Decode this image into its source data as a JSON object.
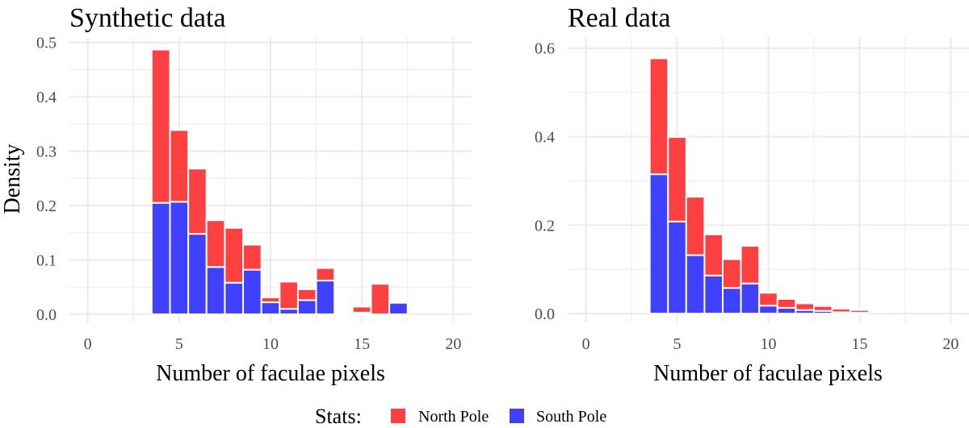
{
  "chart_data": [
    {
      "type": "bar",
      "stacked": true,
      "title": "Synthetic data",
      "xlabel": "Number of faculae pixels",
      "ylabel": "Density",
      "xlim": [
        -1,
        21
      ],
      "ylim": [
        -0.015,
        0.51
      ],
      "xticks": [
        0,
        5,
        10,
        15,
        20
      ],
      "yticks": [
        0.0,
        0.1,
        0.2,
        0.3,
        0.4,
        0.5
      ],
      "ytick_labels": [
        "0.0",
        "0.1",
        "0.2",
        "0.3",
        "0.4",
        "0.5"
      ],
      "x": [
        4,
        5,
        6,
        7,
        8,
        9,
        10,
        11,
        12,
        13,
        14,
        15,
        16,
        17
      ],
      "series": [
        {
          "name": "South Pole",
          "values": [
            0.205,
            0.207,
            0.148,
            0.087,
            0.058,
            0.082,
            0.022,
            0.01,
            0.026,
            0.062,
            0.002,
            0.003,
            0.0,
            0.021
          ]
        },
        {
          "name": "North Pole",
          "values": [
            0.282,
            0.132,
            0.12,
            0.086,
            0.101,
            0.046,
            0.009,
            0.05,
            0.02,
            0.023,
            0.0,
            0.011,
            0.056,
            0.0
          ]
        }
      ]
    },
    {
      "type": "bar",
      "stacked": true,
      "title": "Real data",
      "xlabel": "Number of faculae pixels",
      "ylabel": "",
      "xlim": [
        -1,
        21
      ],
      "ylim": [
        -0.02,
        0.625
      ],
      "xticks": [
        0,
        5,
        10,
        15,
        20
      ],
      "yticks": [
        0.0,
        0.2,
        0.4,
        0.6
      ],
      "ytick_labels": [
        "0.0",
        "0.2",
        "0.4",
        "0.6"
      ],
      "x": [
        4,
        5,
        6,
        7,
        8,
        9,
        10,
        11,
        12,
        13,
        14,
        15
      ],
      "series": [
        {
          "name": "South Pole",
          "values": [
            0.315,
            0.208,
            0.132,
            0.086,
            0.058,
            0.068,
            0.018,
            0.013,
            0.008,
            0.006,
            0.003,
            0.002
          ]
        },
        {
          "name": "North Pole",
          "values": [
            0.262,
            0.191,
            0.132,
            0.093,
            0.065,
            0.085,
            0.029,
            0.02,
            0.015,
            0.011,
            0.008,
            0.006
          ]
        }
      ]
    }
  ],
  "legend": {
    "title": "Stats:",
    "entries": [
      {
        "label": "North Pole",
        "color": "#ff4040"
      },
      {
        "label": "South Pole",
        "color": "#4040ff"
      }
    ]
  },
  "colors": {
    "grid": "#ebebeb",
    "north": "#ff4040",
    "south": "#4040ff"
  }
}
